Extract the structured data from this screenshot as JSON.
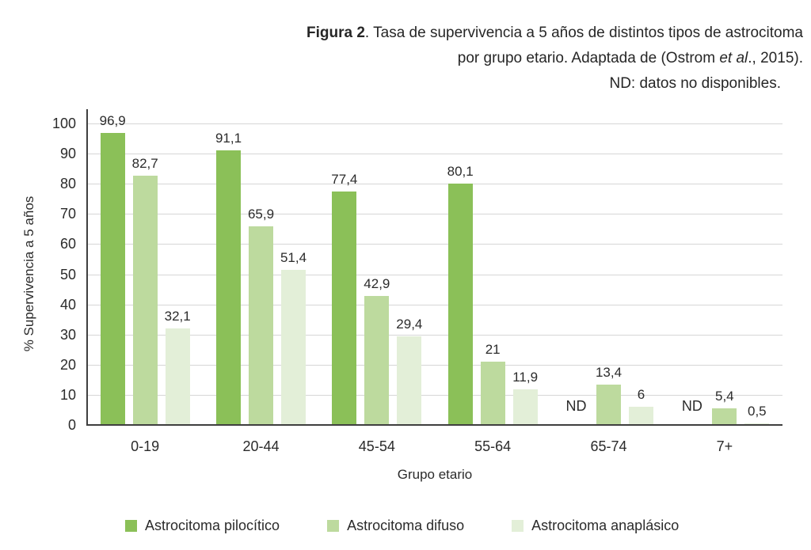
{
  "figure": {
    "caption_line1_bold": "Figura 2",
    "caption_line1_rest": ". Tasa de supervivencia a 5 años de distintos tipos de astrocitoma",
    "caption_line2_prefix": "por grupo etario. Adaptada de (Ostrom ",
    "caption_line2_italic": "et al",
    "caption_line2_suffix": "., 2015).",
    "caption_line3": "ND: datos no disponibles."
  },
  "chart_data": {
    "type": "bar",
    "title": "Figura 2. Tasa de supervivencia a 5 años de distintos tipos de astrocitoma por grupo etario. Adaptada de (Ostrom et al., 2015).",
    "note": "ND: datos no disponibles.",
    "xlabel": "Grupo etario",
    "ylabel": "% Supervivencia a 5 años",
    "ylim": [
      0,
      100
    ],
    "yticks": [
      0,
      10,
      20,
      30,
      40,
      50,
      60,
      70,
      80,
      90,
      100
    ],
    "grid": true,
    "legend_position": "bottom",
    "missing_value_label": "ND",
    "categories": [
      "0-19",
      "20-44",
      "45-54",
      "55-64",
      "65-74",
      "7+"
    ],
    "series": [
      {
        "name": "Astrocitoma pilocítico",
        "color": "#8bc058",
        "values": [
          96.9,
          91.1,
          77.4,
          80.1,
          null,
          null
        ],
        "labels": [
          "96,9",
          "91,1",
          "77,4",
          "80,1",
          "ND",
          "ND"
        ]
      },
      {
        "name": "Astrocitoma difuso",
        "color": "#bdda9e",
        "values": [
          82.7,
          65.9,
          42.9,
          21,
          13.4,
          5.4
        ],
        "labels": [
          "82,7",
          "65,9",
          "42,9",
          "21",
          "13,4",
          "5,4"
        ]
      },
      {
        "name": "Astrocitoma anaplásico",
        "color": "#e3efd8",
        "values": [
          32.1,
          51.4,
          29.4,
          11.9,
          6,
          0.5
        ],
        "labels": [
          "32,1",
          "51,4",
          "29,4",
          "11,9",
          "6",
          "0,5"
        ]
      }
    ]
  },
  "colors": {
    "gridline": "#d6d6d6",
    "axis": "#3f3f3f",
    "text": "#2b2b2b",
    "background": "#ffffff"
  }
}
